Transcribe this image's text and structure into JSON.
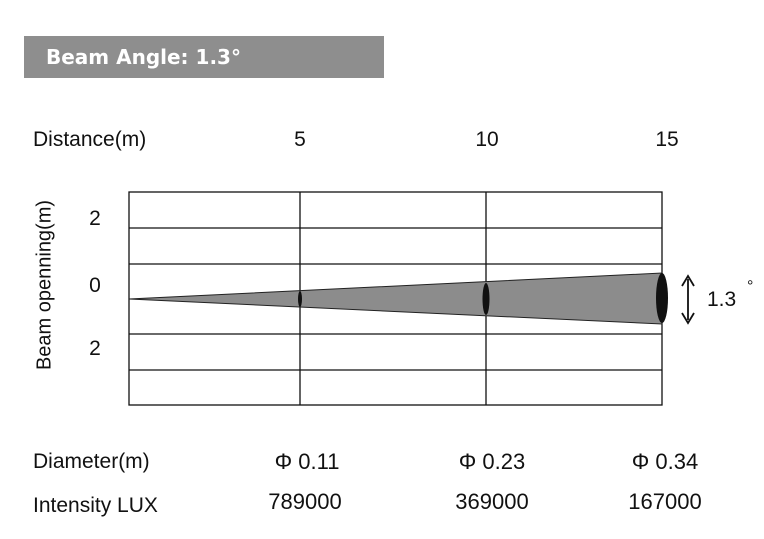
{
  "header": {
    "title": "Beam Angle: 1.3°"
  },
  "distance": {
    "label": "Distance(m)",
    "ticks": [
      "5",
      "10",
      "15"
    ]
  },
  "beam_opening": {
    "label": "Beam openning(m)",
    "ticks": [
      "2",
      "0",
      "2"
    ]
  },
  "angle_marker": {
    "label": "1.3",
    "degree": "°"
  },
  "diameter": {
    "label": "Diameter(m)",
    "symbol": "Φ",
    "values": [
      "0.11",
      "0.23",
      "0.34"
    ]
  },
  "intensity": {
    "label": "Intensity LUX",
    "values": [
      "789000",
      "369000",
      "167000"
    ]
  },
  "colors": {
    "header_bg": "#8e8e8e",
    "beam_fill": "#8c8c8c",
    "grid": "#111111"
  }
}
